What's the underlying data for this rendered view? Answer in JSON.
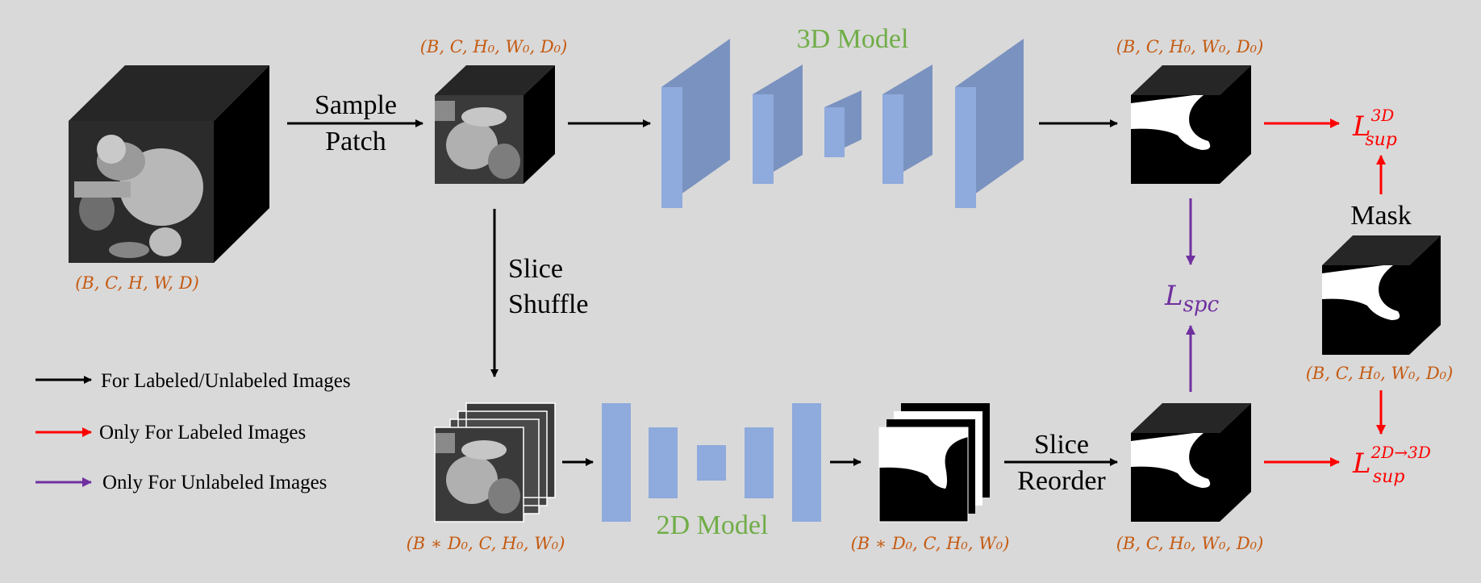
{
  "models": {
    "model_3d": "3D Model",
    "model_2d": "2D Model"
  },
  "labels": {
    "sample_patch_1": "Sample",
    "sample_patch_2": "Patch",
    "slice_shuffle_1": "Slice",
    "slice_shuffle_2": "Shuffle",
    "slice_reorder_1": "Slice",
    "slice_reorder_2": "Reorder",
    "mask": "Mask"
  },
  "dims": {
    "input_volume": "(B, C, H, W, D)",
    "patch": "(B, C, H₀, W₀, D₀)",
    "pred_3d": "(B, C, H₀, W₀, D₀)",
    "slices": "(B ∗ D₀, C, H₀, W₀)",
    "pred_2d_slices": "(B ∗ D₀, C, H₀, W₀)",
    "reordered": "(B, C, H₀, W₀, D₀)",
    "mask": "(B, C, H₀, W₀, D₀)"
  },
  "losses": {
    "l_sup_3d": {
      "base": "L",
      "sub": "sup",
      "sup": "3D"
    },
    "l_spc": {
      "base": "L",
      "sub": "spc"
    },
    "l_sup_2d3d": {
      "base": "L",
      "sub": "sup",
      "sup": "2D→3D"
    }
  },
  "legend": [
    {
      "label": "For Labeled/Unlabeled Images",
      "color": "#000000"
    },
    {
      "label": "Only For Labeled Images",
      "color": "#ff0000"
    },
    {
      "label": "Only For Unlabeled Images",
      "color": "#7030a0"
    }
  ],
  "colors": {
    "dim_text": "#c55a11",
    "model_text": "#70ad47",
    "supervised_arrow": "#ff0000",
    "consistency_arrow": "#7030a0",
    "general_arrow": "#000000",
    "layer_front": "#8faadc",
    "layer_side": "#7a92bf"
  }
}
